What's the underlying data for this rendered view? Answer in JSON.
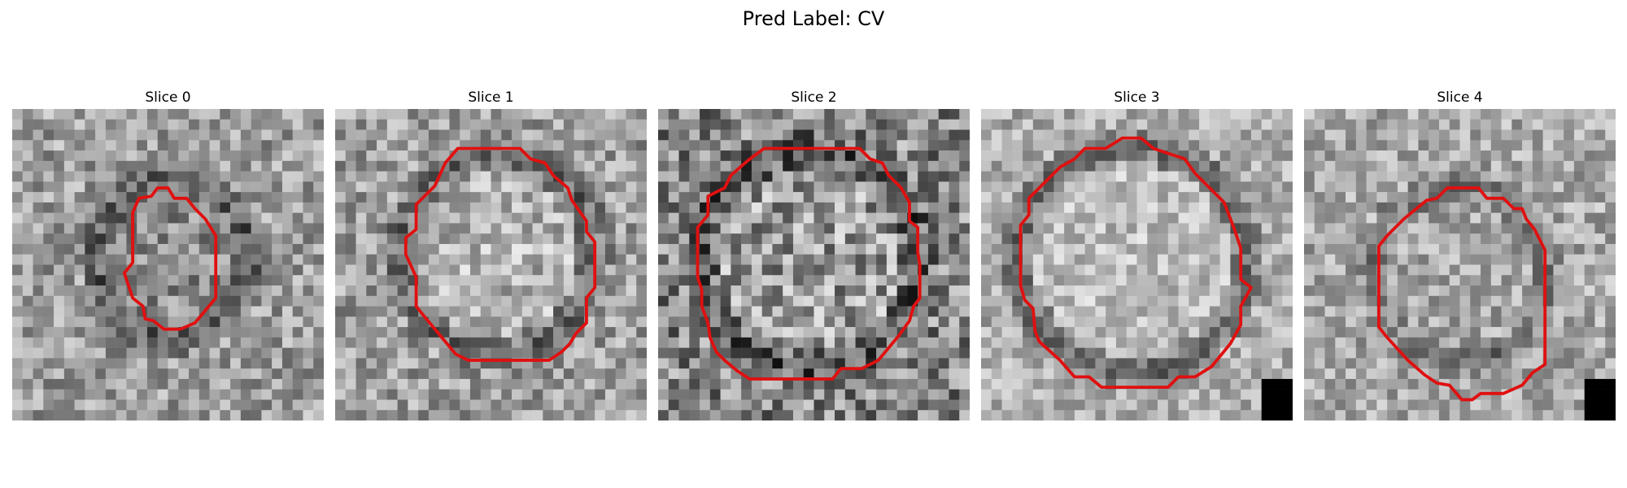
{
  "title": "Pred Label: CV",
  "contour_color": "#e01010",
  "slices": [
    {
      "label": "Slice 0"
    },
    {
      "label": "Slice 1"
    },
    {
      "label": "Slice 2"
    },
    {
      "label": "Slice 3"
    },
    {
      "label": "Slice 4"
    }
  ]
}
